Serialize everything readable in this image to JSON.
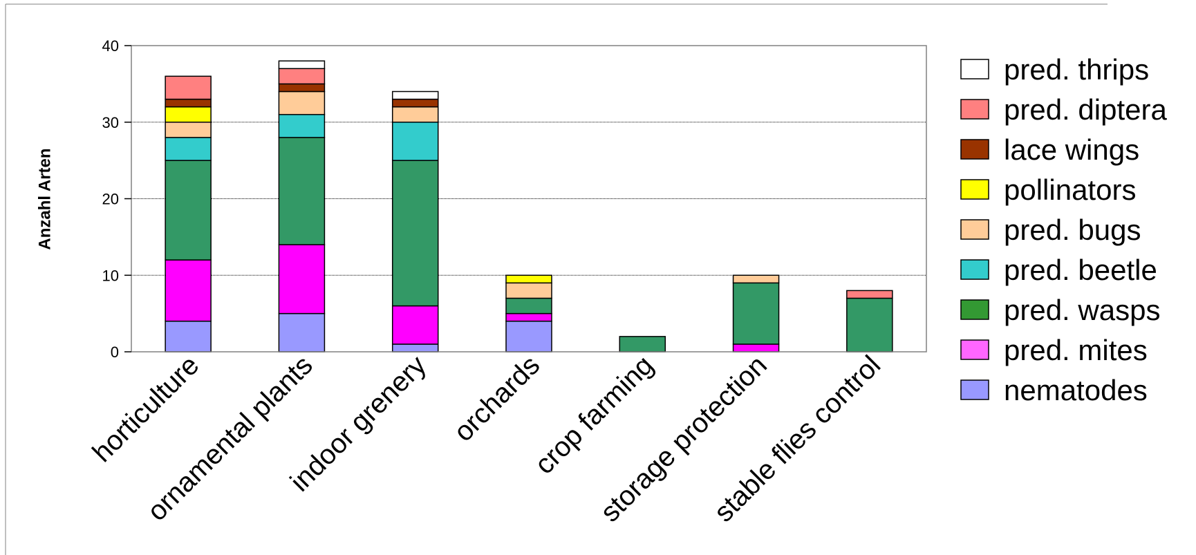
{
  "chart_data": {
    "type": "bar",
    "stacked": true,
    "ylabel": "Anzahl Arten",
    "xlabel": "",
    "ylim": [
      0,
      40
    ],
    "yticks": [
      0,
      10,
      20,
      30,
      40
    ],
    "grid": true,
    "legend_position": "right",
    "categories": [
      "horticulture",
      "ornamental plants",
      "indoor grenery",
      "orchards",
      "crop farming",
      "storage protection",
      "stable flies control"
    ],
    "series": [
      {
        "name": "nematodes",
        "color": "#9999ff",
        "values": [
          4,
          5,
          1,
          4,
          0,
          0,
          0
        ]
      },
      {
        "name": "pred. mites",
        "color": "#ff00ff",
        "values": [
          8,
          9,
          5,
          1,
          0,
          1,
          0
        ]
      },
      {
        "name": "pred. wasps",
        "color": "#339966",
        "values": [
          13,
          14,
          19,
          2,
          2,
          8,
          7
        ]
      },
      {
        "name": "pred. beetle",
        "color": "#33cccc",
        "values": [
          3,
          3,
          5,
          0,
          0,
          0,
          0
        ]
      },
      {
        "name": "pred. bugs",
        "color": "#ffcc99",
        "values": [
          2,
          3,
          2,
          2,
          0,
          1,
          0
        ]
      },
      {
        "name": "pollinators",
        "color": "#ffff00",
        "values": [
          2,
          0,
          0,
          1,
          0,
          0,
          0
        ]
      },
      {
        "name": "lace wings",
        "color": "#993300",
        "values": [
          1,
          1,
          1,
          0,
          0,
          0,
          0
        ]
      },
      {
        "name": "pred. diptera",
        "color": "#ff8080",
        "values": [
          3,
          2,
          0,
          0,
          0,
          0,
          1
        ]
      },
      {
        "name": "pred. thrips",
        "color": "#ffffff",
        "values": [
          0,
          1,
          1,
          0,
          0,
          0,
          0
        ]
      }
    ],
    "legend_swatch_colors": {
      "pred. wasps": "#339933",
      "pred. mites": "#ff66ff"
    }
  }
}
